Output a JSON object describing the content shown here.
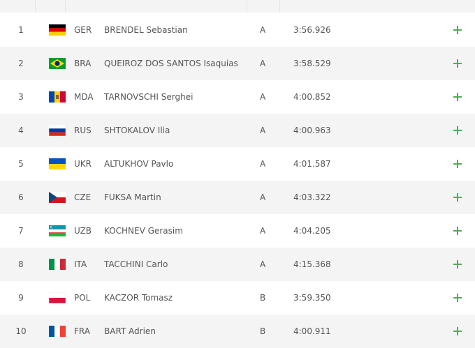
{
  "table": {
    "rows": [
      {
        "rank": 1,
        "country": "GER",
        "name": "BRENDEL Sebastian",
        "heat": "A",
        "time": "3:56.926"
      },
      {
        "rank": 2,
        "country": "BRA",
        "name": "QUEIROZ DOS SANTOS Isaquias",
        "heat": "A",
        "time": "3:58.529"
      },
      {
        "rank": 3,
        "country": "MDA",
        "name": "TARNOVSCHI Serghei",
        "heat": "A",
        "time": "4:00.852"
      },
      {
        "rank": 4,
        "country": "RUS",
        "name": "SHTOKALOV Ilia",
        "heat": "A",
        "time": "4:00.963"
      },
      {
        "rank": 5,
        "country": "UKR",
        "name": "ALTUKHOV Pavlo",
        "heat": "A",
        "time": "4:01.587"
      },
      {
        "rank": 6,
        "country": "CZE",
        "name": "FUKSA Martin",
        "heat": "A",
        "time": "4:03.322"
      },
      {
        "rank": 7,
        "country": "UZB",
        "name": "KOCHNEV Gerasim",
        "heat": "A",
        "time": "4:04.205"
      },
      {
        "rank": 8,
        "country": "ITA",
        "name": "TACCHINI Carlo",
        "heat": "A",
        "time": "4:15.368"
      },
      {
        "rank": 9,
        "country": "POL",
        "name": "KACZOR Tomasz",
        "heat": "B",
        "time": "3:59.350"
      },
      {
        "rank": 10,
        "country": "FRA",
        "name": "BART Adrien",
        "heat": "B",
        "time": "4:00.911"
      }
    ]
  }
}
